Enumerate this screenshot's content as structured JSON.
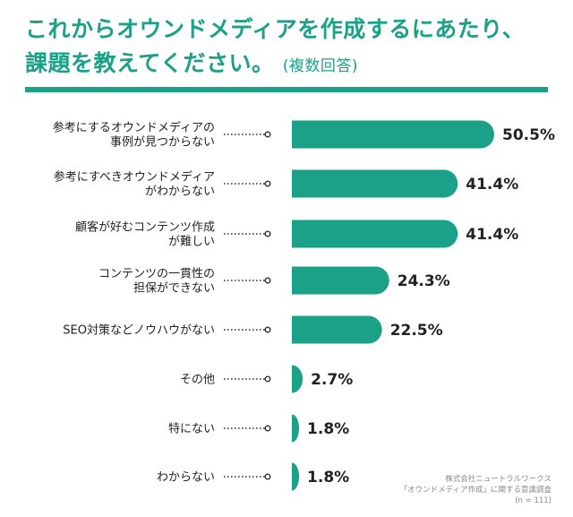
{
  "header": {
    "title_line1": "これからオウンドメディアを作成するにあたり、",
    "title_line2": "課題を教えてください。",
    "title_sub": "(複数回答)"
  },
  "colors": {
    "accent": "#1aa187",
    "text": "#222222",
    "note": "#8a8a8a"
  },
  "chart_data": {
    "type": "bar",
    "orientation": "horizontal",
    "title": "これからオウンドメディアを作成するにあたり、課題を教えてください。(複数回答)",
    "unit": "%",
    "categories": [
      [
        "参考にするオウンドメディアの",
        "事例が見つからない"
      ],
      [
        "参考にすべきオウンドメディア",
        "がわからない"
      ],
      [
        "顧客が好むコンテンツ作成",
        "が難しい"
      ],
      [
        "コンテンツの一貫性の",
        "担保ができない"
      ],
      [
        "SEO対策などノウハウがない"
      ],
      [
        "その他"
      ],
      [
        "特にない"
      ],
      [
        "わからない"
      ]
    ],
    "values": [
      50.5,
      41.4,
      41.4,
      24.3,
      22.5,
      2.7,
      1.8,
      1.8
    ],
    "value_labels": [
      "50.5%",
      "41.4%",
      "41.4%",
      "24.3%",
      "22.5%",
      "2.7%",
      "1.8%",
      "1.8%"
    ]
  },
  "source": {
    "line1": "株式会社ニュートラルワークス",
    "line2": "「オウンドメディア作成」に関する意識調査",
    "line3": "(n = 111)"
  }
}
